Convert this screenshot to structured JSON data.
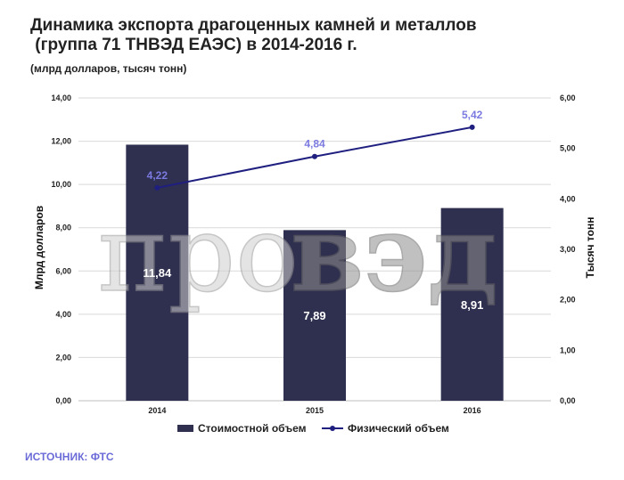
{
  "header": {
    "title_line1": "Динамика экспорта драгоценных камней и металлов",
    "title_line2": " (группа 71 ТНВЭД ЕАЭС) в 2014-2016 г.",
    "subtitle": "(млрд долларов, тысяч тонн)"
  },
  "footer": {
    "source": "ИСТОЧНИК: ФТС"
  },
  "watermark": {
    "part1": "про",
    "part2": "вэд"
  },
  "colors": {
    "bar": "#2f2f4f",
    "line": "#1f1f80",
    "line_label": "#7a7ae0",
    "grid": "#d9d9d9"
  },
  "chart_data": {
    "type": "bar",
    "categories": [
      "2014",
      "2015",
      "2016"
    ],
    "series": [
      {
        "name": "Стоимостной объем",
        "type": "bar",
        "axis": "left",
        "values": [
          11.84,
          7.89,
          8.91
        ],
        "labels": [
          "11,84",
          "7,89",
          "8,91"
        ]
      },
      {
        "name": "Физический объем",
        "type": "line",
        "axis": "right",
        "values": [
          4.22,
          4.84,
          5.42
        ],
        "labels": [
          "4,22",
          "4,84",
          "5,42"
        ]
      }
    ],
    "ylabel": "Млрд долларов",
    "y2label": "Тысяч тонн",
    "ylim": [
      0,
      14
    ],
    "y2lim": [
      0,
      6
    ],
    "yticks": [
      "0,00",
      "2,00",
      "4,00",
      "6,00",
      "8,00",
      "10,00",
      "12,00",
      "14,00"
    ],
    "y2ticks": [
      "0,00",
      "1,00",
      "2,00",
      "3,00",
      "4,00",
      "5,00",
      "6,00"
    ],
    "grid": true,
    "legend_position": "bottom"
  }
}
